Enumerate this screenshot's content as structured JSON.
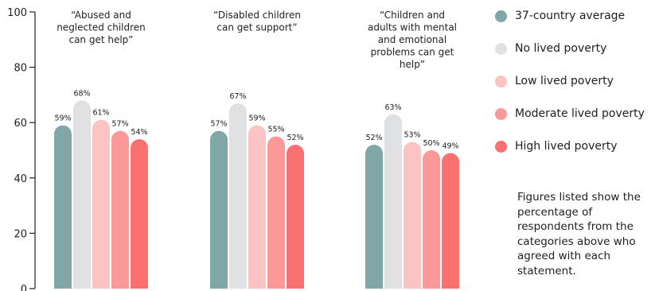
{
  "chart_data": {
    "type": "bar",
    "categories": [
      "“Abused and neglected children can get help”",
      "“Disabled children can get support”",
      "“Children and adults with mental and emotional problems can get help”"
    ],
    "category_lines": [
      [
        "“Abused and",
        "neglected children",
        "can get help”"
      ],
      [
        "“Disabled children",
        "can get support”"
      ],
      [
        "“Children and",
        "adults with mental",
        "and emotional",
        "problems can get",
        "help”"
      ]
    ],
    "series": [
      {
        "name": "37-country average",
        "color": "#80a7a7",
        "values": [
          59,
          57,
          52
        ]
      },
      {
        "name": "No lived poverty",
        "color": "#e0e1e3",
        "values": [
          68,
          67,
          63
        ]
      },
      {
        "name": "Low lived poverty",
        "color": "#fcc3c3",
        "values": [
          61,
          59,
          53
        ]
      },
      {
        "name": "Moderate lived poverty",
        "color": "#fb9999",
        "values": [
          57,
          55,
          50
        ]
      },
      {
        "name": "High lived poverty",
        "color": "#fd7070",
        "values": [
          54,
          52,
          49
        ]
      }
    ],
    "value_suffix": "%",
    "ylim": [
      0,
      100
    ],
    "yticks": [
      0,
      20,
      40,
      60,
      80,
      100
    ],
    "grid": false,
    "legend_position": "right"
  },
  "footnote": "Figures listed show the percentage of respondents from the categories above who agreed with each statement."
}
